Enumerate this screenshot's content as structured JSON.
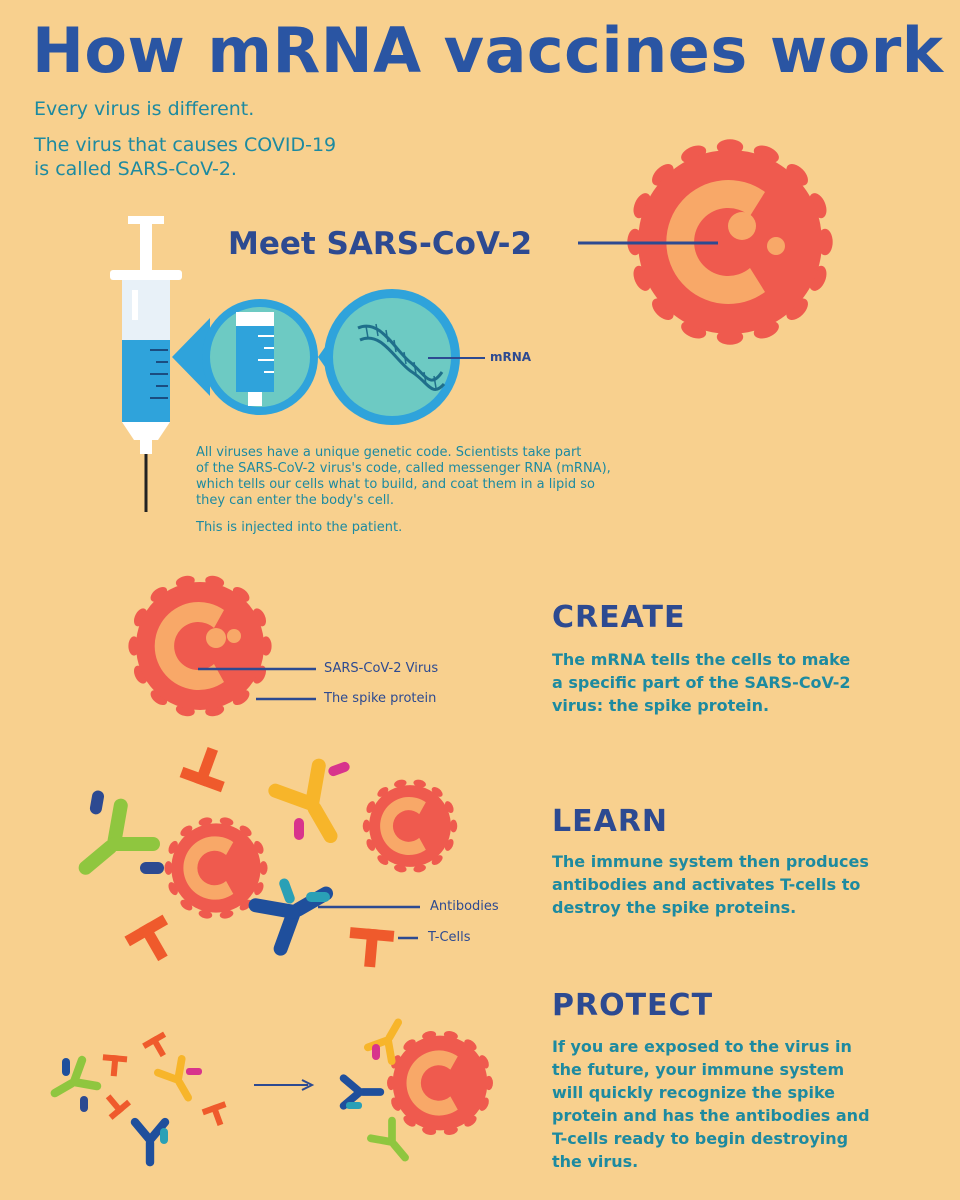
{
  "title": "How mRNA vaccines work",
  "intro": {
    "line1": "Every virus is different.",
    "line2a": "The virus that causes COVID-19",
    "line2b": "is called SARS-CoV-2."
  },
  "meet": "Meet SARS-CoV-2",
  "mrna_label": "mRNA",
  "description": {
    "l1": "All viruses have a unique genetic code. Scientists take part",
    "l2": "of the SARS-CoV-2 virus's code, called messenger RNA (mRNA),",
    "l3": "which tells our cells what to build, and coat them in a lipid so",
    "l4": "they can enter the body's cell.",
    "injected": "This is injected into the patient."
  },
  "create": {
    "heading": "CREATE",
    "l1": "The mRNA tells the cells to make",
    "l2": "a specific part of the SARS-CoV-2",
    "l3": "virus: the spike protein.",
    "label_virus": "SARS-CoV-2 Virus",
    "label_spike": "The spike protein"
  },
  "learn": {
    "heading": "LEARN",
    "l1": "The immune system then produces",
    "l2": "antibodies and activates T-cells to",
    "l3": "destroy the spike proteins.",
    "label_antibodies": "Antibodies",
    "label_tcells": "T-Cells"
  },
  "protect": {
    "heading": "PROTECT",
    "l1": "If you are exposed to the virus in",
    "l2": "the future, your immune system",
    "l3": "will quickly recognize the spike",
    "l4": "protein and has the antibodies and",
    "l5": "T-cells ready to begin destroying",
    "l6": "the virus."
  },
  "colors": {
    "background": "#f8d08e",
    "title_blue": "#2a55a3",
    "teal_text": "#1d8aa0",
    "virus_red": "#ef5a4e",
    "virus_core": "#f8a868",
    "syringe_blue": "#2fa3db",
    "bubble_teal": "#6dcac3"
  }
}
